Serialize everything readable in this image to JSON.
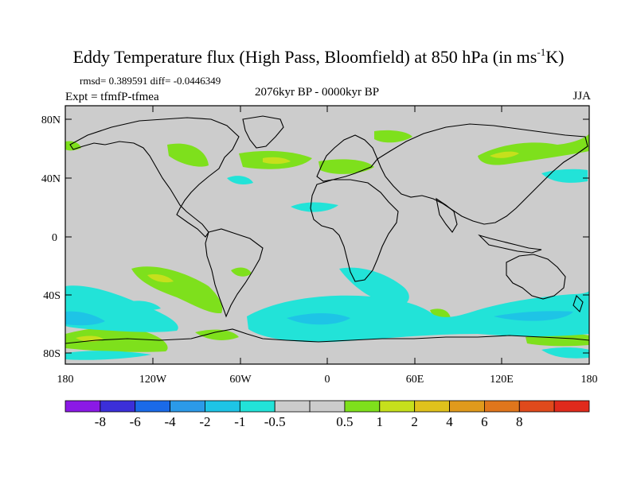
{
  "title": {
    "main_prefix": "Eddy Temperature flux (High Pass, Bloomfield) at 850 hPa (in ms",
    "superscript": "-1",
    "main_suffix": "K)"
  },
  "stats": "rmsd= 0.389591 diff= -0.0446349",
  "experiment": "Expt = tfmfP-tfmea",
  "period": "2076kyr BP - 0000kyr BP",
  "season": "JJA",
  "axes": {
    "lat_labels": [
      "80N",
      "40N",
      "0",
      "40S",
      "80S"
    ],
    "lon_labels": [
      "180",
      "120W",
      "60W",
      "0",
      "60E",
      "120E",
      "180"
    ]
  },
  "colorbar": {
    "colors": [
      "#8b19e6",
      "#3b2fd9",
      "#1a6ae8",
      "#2b9ae8",
      "#1ec4e6",
      "#22e3d8",
      "#cccccc",
      "#cccccc",
      "#7ee01c",
      "#c6e01c",
      "#e0c21c",
      "#e09a1c",
      "#e0761c",
      "#e04a1c",
      "#e02a1c"
    ],
    "labels": [
      "-8",
      "-6",
      "-4",
      "-2",
      "-1",
      "-0.5",
      "0.5",
      "1",
      "2",
      "4",
      "6",
      "8"
    ]
  },
  "colors": {
    "background": "#cccccc",
    "positive_low": "#7ee01c",
    "positive_mid": "#c6e01c",
    "negative_low": "#22e3d8",
    "negative_mid": "#1ec4e6",
    "coast": "#000000"
  }
}
